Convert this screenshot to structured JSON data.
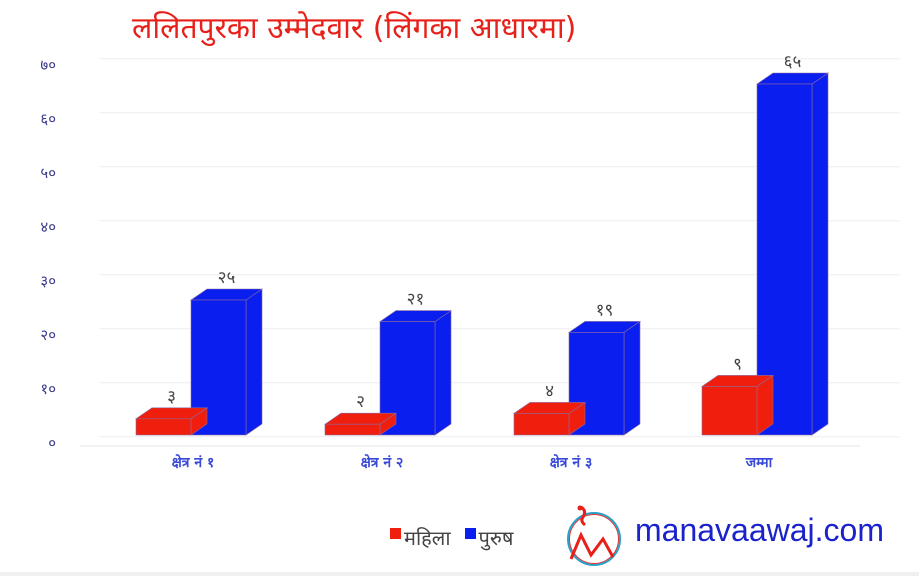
{
  "title": "ललितपुरका उम्मेदवार (लिंगका आधारमा)",
  "colors": {
    "female": "#f01e0c",
    "male": "#0a1ef0",
    "title": "#e8201a",
    "axis_text": "#3a3a8a",
    "site": "#1a22cc"
  },
  "legend": {
    "female_label": "महिला",
    "male_label": "पुरुष"
  },
  "watermark": {
    "site": "manavaawaj.com",
    "logo": "mountain-circle-logo"
  },
  "chart_data": {
    "type": "bar",
    "title": "ललितपुरका उम्मेदवार (लिंगका आधारमा)",
    "categories": [
      "क्षेत्र नं १",
      "क्षेत्र नं २",
      "क्षेत्र नं ३",
      "जम्मा"
    ],
    "series": [
      {
        "name": "महिला",
        "values": [
          3,
          2,
          4,
          9
        ],
        "labels": [
          "३",
          "२",
          "४",
          "९"
        ],
        "color": "#f01e0c"
      },
      {
        "name": "पुरुष",
        "values": [
          25,
          21,
          19,
          65
        ],
        "labels": [
          "२५",
          "२१",
          "१९",
          "६५"
        ],
        "color": "#0a1ef0"
      }
    ],
    "yticks": [
      0,
      10,
      20,
      30,
      40,
      50,
      60,
      70
    ],
    "ytick_labels": [
      "०",
      "१०",
      "२०",
      "३०",
      "४०",
      "५०",
      "६०",
      "७०"
    ],
    "ylim": [
      0,
      70
    ],
    "xlabel": "",
    "ylabel": "",
    "grid": true,
    "legend_position": "bottom",
    "style": "3d-column"
  }
}
